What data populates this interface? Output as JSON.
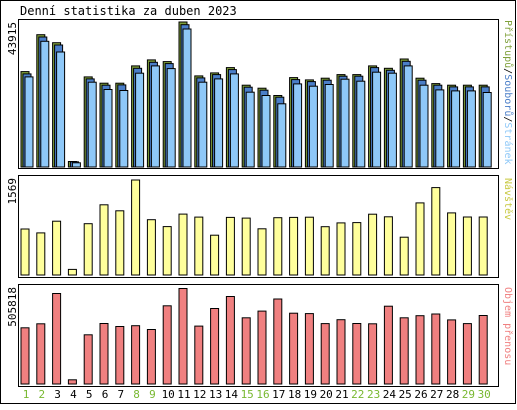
{
  "title": "Denní statistika za duben 2023",
  "colors": {
    "border": "#000000",
    "background": "#ffffff",
    "pristupu": "#7fa03a",
    "souboru": "#4a7ec8",
    "stranek": "#8ec8f8",
    "navstev": "#ffff9c",
    "objem": "#f08080",
    "weekend_label": "#78b830",
    "weekday_label": "#000000"
  },
  "days": [
    "1",
    "2",
    "3",
    "4",
    "5",
    "6",
    "7",
    "8",
    "9",
    "10",
    "11",
    "12",
    "13",
    "14",
    "15",
    "16",
    "17",
    "18",
    "19",
    "20",
    "21",
    "22",
    "23",
    "24",
    "25",
    "26",
    "27",
    "28",
    "29",
    "30"
  ],
  "weekend_days": [
    "1",
    "2",
    "8",
    "9",
    "15",
    "16",
    "22",
    "23",
    "29",
    "30"
  ],
  "chart_data": [
    {
      "type": "bar",
      "name": "hits-pages-files",
      "ymax_label": "43915",
      "ylim": [
        0,
        43915
      ],
      "legend": {
        "pristupu": "Přístupů",
        "sep1": "/",
        "souboru": "Souborů",
        "sep2": "/",
        "stranek": "Stránek"
      },
      "series": [
        {
          "name": "Přístupů",
          "values": [
            28700,
            39800,
            37400,
            1650,
            27100,
            25200,
            25200,
            30400,
            32200,
            31700,
            43600,
            27400,
            28300,
            29900,
            24600,
            23700,
            21500,
            26900,
            26200,
            26700,
            27800,
            27800,
            30400,
            29700,
            32500,
            26700,
            25100,
            24600,
            24600,
            24600
          ]
        },
        {
          "name": "Souborů",
          "values": [
            28000,
            39100,
            36700,
            1550,
            26500,
            24600,
            24700,
            29700,
            31500,
            31100,
            42800,
            26800,
            27800,
            29300,
            24000,
            23100,
            21000,
            26300,
            25700,
            26100,
            27300,
            27300,
            29900,
            29100,
            31800,
            26100,
            24600,
            24100,
            24100,
            24100
          ]
        },
        {
          "name": "Stránek",
          "values": [
            27100,
            37800,
            34600,
            1250,
            25500,
            23300,
            23000,
            28200,
            30400,
            29600,
            41500,
            25500,
            26500,
            28000,
            22500,
            21500,
            19000,
            25000,
            24300,
            24800,
            26400,
            25800,
            28500,
            28200,
            30400,
            24600,
            23200,
            22900,
            22900,
            22400
          ]
        }
      ]
    },
    {
      "type": "bar",
      "name": "visits",
      "ymax_label": "1569",
      "ylim": [
        0,
        1569
      ],
      "legend": "Návštěv",
      "series": [
        {
          "name": "Návštěv",
          "values": [
            760,
            695,
            889,
            92,
            847,
            1160,
            1061,
            1569,
            914,
            799,
            1006,
            956,
            658,
            951,
            939,
            763,
            947,
            951,
            954,
            797,
            860,
            866,
            1004,
            961,
            624,
            1191,
            1443,
            1026,
            958,
            958
          ]
        }
      ]
    },
    {
      "type": "bar",
      "name": "transfer",
      "ymax_label": "505818",
      "ylim": [
        0,
        505818
      ],
      "legend": "Objem přenosu",
      "series": [
        {
          "name": "Objem přenosu",
          "values": [
            296000,
            317000,
            477000,
            22000,
            259000,
            319000,
            303000,
            307000,
            287000,
            412000,
            503000,
            305000,
            398000,
            461000,
            349000,
            384000,
            448000,
            373000,
            371000,
            318000,
            339000,
            319000,
            317000,
            410000,
            349000,
            360000,
            369000,
            338000,
            318000,
            361000
          ]
        }
      ]
    }
  ]
}
